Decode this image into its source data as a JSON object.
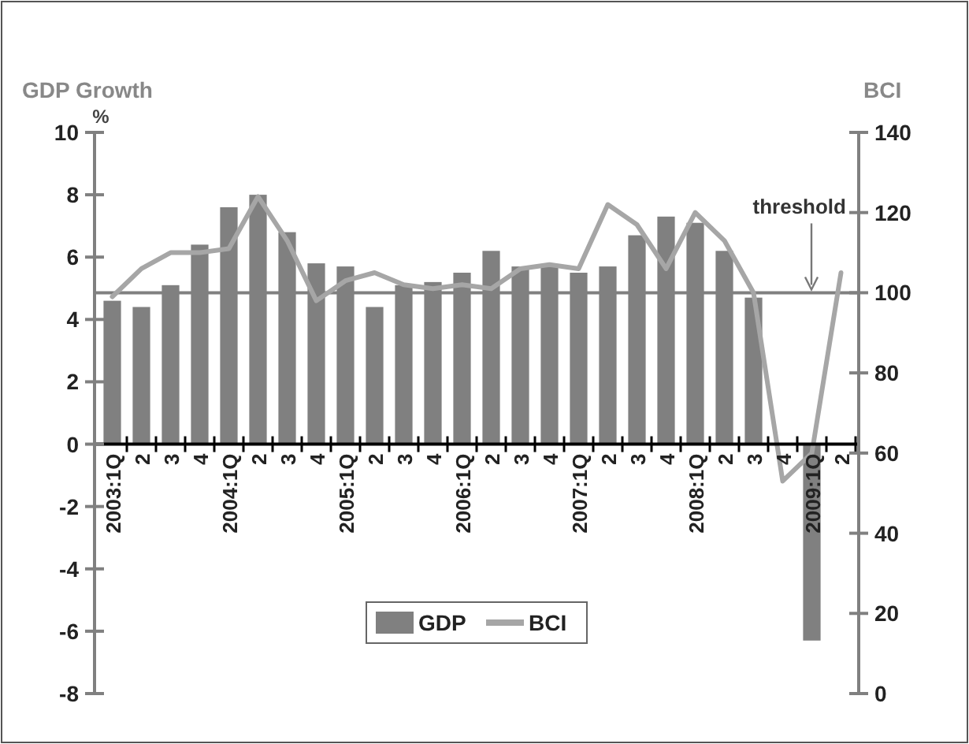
{
  "chart_data": {
    "type": "bar",
    "ylabel": "GDP Growth",
    "y2label": "BCI",
    "annotations": [
      "%"
    ],
    "categories": [
      "2003:1Q",
      "2",
      "3",
      "4",
      "2004:1Q",
      "2",
      "3",
      "4",
      "2005:1Q",
      "2",
      "3",
      "4",
      "2006:1Q",
      "2",
      "3",
      "4",
      "2007:1Q",
      "2",
      "3",
      "4",
      "2008:1Q",
      "2",
      "3",
      "4",
      "2009:1Q",
      "2"
    ],
    "series": [
      {
        "name": "GDP",
        "color": "#808080",
        "values": [
          4.6,
          4.4,
          5.1,
          6.4,
          7.6,
          8.0,
          6.8,
          5.8,
          5.7,
          4.4,
          5.1,
          5.2,
          5.5,
          6.2,
          5.7,
          5.7,
          5.5,
          5.7,
          6.7,
          7.3,
          7.1,
          6.2,
          4.7,
          null,
          -6.3,
          null
        ]
      },
      {
        "name": "BCI",
        "type": "line",
        "axis": "y2",
        "color": "#a6a6a6",
        "values": [
          99,
          106,
          110,
          110,
          111,
          124,
          113,
          98,
          103,
          105,
          102,
          101,
          102,
          101,
          106,
          107,
          106,
          122,
          117,
          106,
          120,
          113,
          100,
          53,
          60,
          105
        ]
      }
    ],
    "ylim": [
      -8,
      10
    ],
    "yticks": [
      -8,
      -6,
      -4,
      -2,
      0,
      2,
      4,
      6,
      8,
      10
    ],
    "y2lim": [
      0,
      140
    ],
    "y2ticks": [
      0,
      20,
      40,
      60,
      80,
      100,
      120,
      140
    ],
    "ref_lines": [
      {
        "axis": "y2",
        "value": 100,
        "label": "threshold",
        "color": "#808080"
      }
    ],
    "legend": "bottom",
    "grid": false
  }
}
